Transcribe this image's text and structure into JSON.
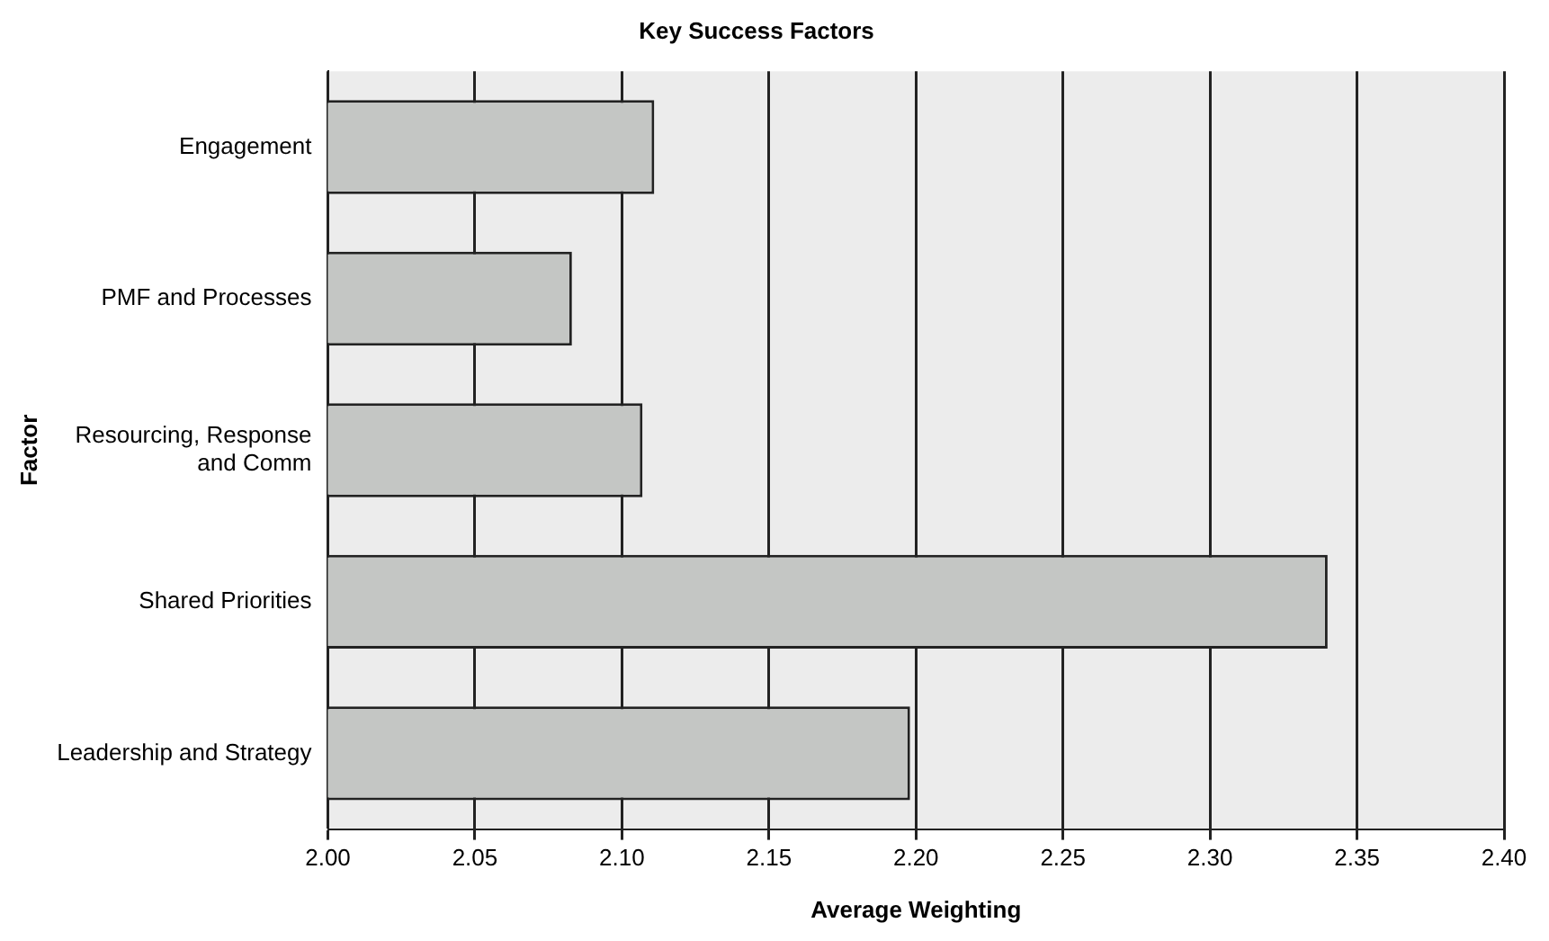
{
  "chart_data": {
    "type": "bar",
    "orientation": "horizontal",
    "title": "Key Success Factors",
    "xlabel": "Average Weighting",
    "ylabel": "Factor",
    "categories": [
      "Engagement",
      "PMF and Processes",
      "Resourcing, Response and Comm",
      "Shared Priorities",
      "Leadership and Strategy"
    ],
    "values": [
      2.111,
      2.083,
      2.107,
      2.34,
      2.198
    ],
    "color": "#c4c6c4",
    "xlim": [
      2,
      2.4
    ],
    "xticks": [
      {
        "value": 2,
        "label": "2.00"
      },
      {
        "value": 2.05,
        "label": "2.05"
      },
      {
        "value": 2.1,
        "label": "2.10"
      },
      {
        "value": 2.15,
        "label": "2.15"
      },
      {
        "value": 2.2,
        "label": "2.20"
      },
      {
        "value": 2.25,
        "label": "2.25"
      },
      {
        "value": 2.3,
        "label": "2.30"
      },
      {
        "value": 2.35,
        "label": "2.35"
      },
      {
        "value": 2.4,
        "label": "2.40"
      }
    ],
    "grid": "x",
    "legend": false
  }
}
